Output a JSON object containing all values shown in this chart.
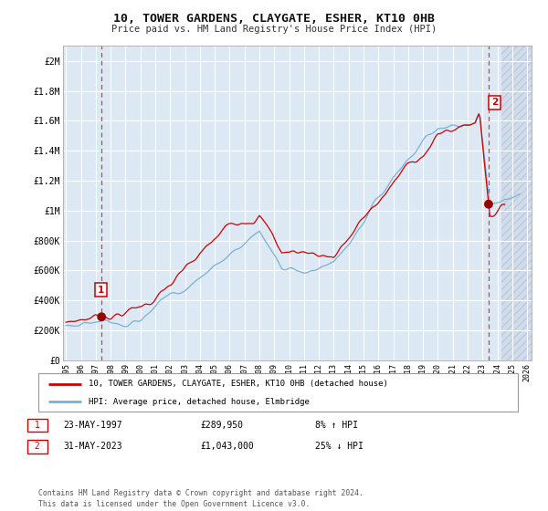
{
  "title": "10, TOWER GARDENS, CLAYGATE, ESHER, KT10 0HB",
  "subtitle": "Price paid vs. HM Land Registry's House Price Index (HPI)",
  "bg_color": "#dce9f5",
  "grid_color": "#ffffff",
  "red_line_color": "#cc0000",
  "blue_line_color": "#7ab0d4",
  "dashed_line_color": "#ee3333",
  "marker_color": "#990000",
  "legend_label_red": "10, TOWER GARDENS, CLAYGATE, ESHER, KT10 0HB (detached house)",
  "legend_label_blue": "HPI: Average price, detached house, Elmbridge",
  "point1_date": "23-MAY-1997",
  "point1_price": "£289,950",
  "point1_hpi": "8% ↑ HPI",
  "point2_date": "31-MAY-2023",
  "point2_price": "£1,043,000",
  "point2_hpi": "25% ↓ HPI",
  "footer": "Contains HM Land Registry data © Crown copyright and database right 2024.\nThis data is licensed under the Open Government Licence v3.0.",
  "ylim_bottom": 0,
  "ylim_top": 2100000,
  "yticks": [
    0,
    200000,
    400000,
    600000,
    800000,
    1000000,
    1200000,
    1400000,
    1600000,
    1800000,
    2000000
  ],
  "ytick_labels": [
    "£0",
    "£200K",
    "£400K",
    "£600K",
    "£800K",
    "£1M",
    "£1.2M",
    "£1.4M",
    "£1.6M",
    "£1.8M",
    "£2M"
  ],
  "xticks": [
    1995,
    1996,
    1997,
    1998,
    1999,
    2000,
    2001,
    2002,
    2003,
    2004,
    2005,
    2006,
    2007,
    2008,
    2009,
    2010,
    2011,
    2012,
    2013,
    2014,
    2015,
    2016,
    2017,
    2018,
    2019,
    2020,
    2021,
    2022,
    2023,
    2024,
    2025,
    2026
  ],
  "point1_x": 1997.39,
  "point1_y": 289950,
  "point2_x": 2023.41,
  "point2_y": 1043000,
  "hatch_start": 2024.3,
  "xmin": 1994.8,
  "xmax": 2026.3
}
